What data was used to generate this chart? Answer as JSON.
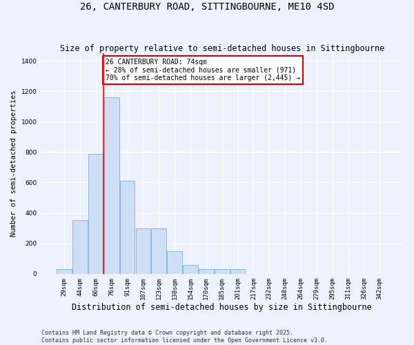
{
  "title": "26, CANTERBURY ROAD, SITTINGBOURNE, ME10 4SD",
  "subtitle": "Size of property relative to semi-detached houses in Sittingbourne",
  "xlabel": "Distribution of semi-detached houses by size in Sittingbourne",
  "ylabel": "Number of semi-detached properties",
  "categories": [
    "29sqm",
    "44sqm",
    "60sqm",
    "76sqm",
    "91sqm",
    "107sqm",
    "123sqm",
    "138sqm",
    "154sqm",
    "170sqm",
    "185sqm",
    "201sqm",
    "217sqm",
    "232sqm",
    "248sqm",
    "264sqm",
    "279sqm",
    "295sqm",
    "311sqm",
    "326sqm",
    "342sqm"
  ],
  "values": [
    30,
    355,
    790,
    1160,
    610,
    300,
    300,
    150,
    60,
    30,
    30,
    30,
    0,
    0,
    0,
    0,
    0,
    0,
    0,
    0,
    0
  ],
  "bar_color": "#ccdff5",
  "bar_edge_color": "#89b8e0",
  "red_line_x": 3,
  "annotation_text": "26 CANTERBURY ROAD: 74sqm\n← 28% of semi-detached houses are smaller (971)\n70% of semi-detached houses are larger (2,445) →",
  "annotation_box_color": "#ffffff",
  "annotation_box_edge_color": "#cc0000",
  "ylim": [
    0,
    1450
  ],
  "yticks": [
    0,
    200,
    400,
    600,
    800,
    1000,
    1200,
    1400
  ],
  "background_color": "#eef2fc",
  "grid_color": "#ffffff",
  "footer_text": "Contains HM Land Registry data © Crown copyright and database right 2025.\nContains public sector information licensed under the Open Government Licence v3.0.",
  "title_fontsize": 10,
  "subtitle_fontsize": 8.5,
  "xlabel_fontsize": 8.5,
  "ylabel_fontsize": 7.5,
  "tick_fontsize": 6.5,
  "annotation_fontsize": 7,
  "footer_fontsize": 6
}
